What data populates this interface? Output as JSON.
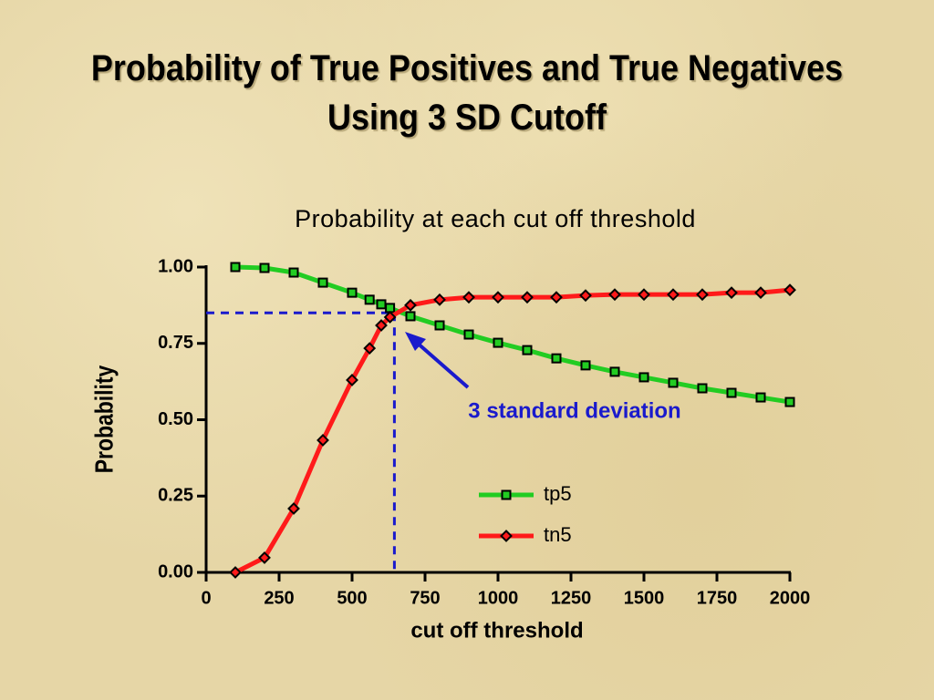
{
  "title": "Probability of True Positives and True Negatives Using 3 SD Cutoff",
  "chart_data": {
    "type": "line",
    "title": "Probability at each cut off threshold",
    "x_label": "cut off threshold",
    "y_label": "Probability",
    "x": [
      100,
      200,
      300,
      400,
      500,
      560,
      600,
      630,
      700,
      800,
      900,
      1000,
      1100,
      1200,
      1300,
      1400,
      1500,
      1600,
      1700,
      1800,
      1900,
      2000
    ],
    "series": [
      {
        "name": "tp5",
        "color": "#22cc22",
        "marker": "square",
        "values": [
          1.0,
          0.997,
          0.982,
          0.949,
          0.916,
          0.893,
          0.878,
          0.866,
          0.839,
          0.809,
          0.779,
          0.752,
          0.728,
          0.701,
          0.678,
          0.657,
          0.639,
          0.621,
          0.603,
          0.588,
          0.573,
          0.558
        ]
      },
      {
        "name": "tn5",
        "color": "#ff1a1a",
        "marker": "diamond",
        "values": [
          0.0,
          0.048,
          0.209,
          0.433,
          0.63,
          0.734,
          0.809,
          0.836,
          0.875,
          0.893,
          0.901,
          0.901,
          0.901,
          0.901,
          0.907,
          0.91,
          0.91,
          0.91,
          0.91,
          0.916,
          0.916,
          0.925
        ]
      }
    ],
    "xlim": [
      0,
      2000
    ],
    "xticks": [
      0,
      250,
      500,
      750,
      1000,
      1250,
      1500,
      1750,
      2000
    ],
    "ylim": [
      0,
      1
    ],
    "yticks": [
      {
        "value": 0,
        "label": "0.00"
      },
      {
        "value": 0.25,
        "label": "0.25"
      },
      {
        "value": 0.5,
        "label": "0.50"
      },
      {
        "value": 0.75,
        "label": "0.75"
      },
      {
        "value": 1,
        "label": "1.00"
      }
    ],
    "annotation": {
      "text": "3 standard deviation",
      "color": "#1a1acc",
      "x": 645,
      "y": 0.85
    }
  }
}
